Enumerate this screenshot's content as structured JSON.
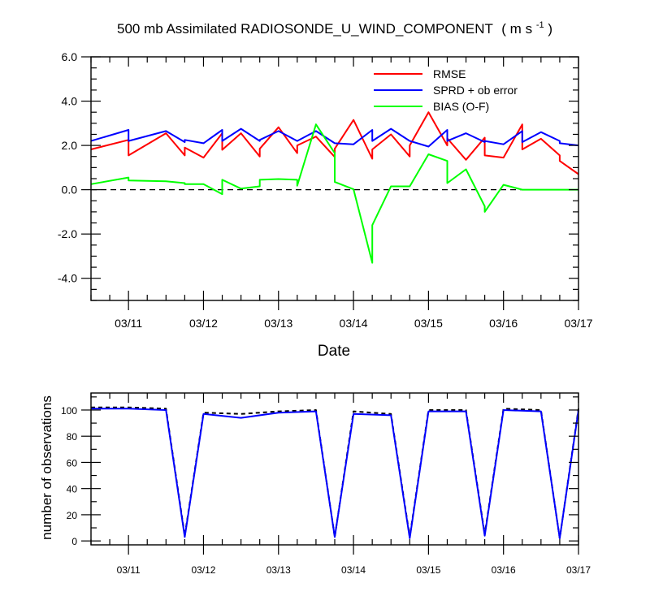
{
  "chart_data": [
    {
      "type": "line",
      "title": "500 mb Assimilated RADIOSONDE_U_WIND_COMPONENT",
      "title_units": "( m s",
      "title_units_sup": "-1",
      "title_units_close": " )",
      "xlabel": "Date",
      "ylabel": "",
      "xlim": [
        0,
        6.5
      ],
      "ylim": [
        -5.0,
        6.0
      ],
      "x_ticks": [
        0.5,
        1.5,
        2.5,
        3.5,
        4.5,
        5.5,
        6.5
      ],
      "x_tick_labels": [
        "03/11",
        "03/12",
        "03/13",
        "03/14",
        "03/15",
        "03/16",
        "03/17"
      ],
      "y_ticks": [
        -4,
        -2,
        0,
        2,
        4,
        6
      ],
      "y_tick_labels": [
        "-4.0",
        "-2.0",
        "0.0",
        "2.0",
        "4.0",
        "6.0"
      ],
      "zero_line": true,
      "grid": false,
      "legend_position": "top-right",
      "series": [
        {
          "name": "RMSE",
          "color": "#ff0000",
          "x": [
            0,
            0.5,
            0.5,
            1.0,
            1.25,
            1.25,
            1.5,
            1.75,
            1.75,
            2.0,
            2.25,
            2.25,
            2.5,
            2.75,
            2.75,
            3.0,
            3.25,
            3.25,
            3.5,
            3.75,
            3.75,
            4.0,
            4.25,
            4.25,
            4.5,
            4.75,
            4.75,
            5.0,
            5.25,
            5.25,
            5.5,
            5.75,
            5.75,
            6.0,
            6.25,
            6.25,
            6.5
          ],
          "y": [
            1.82,
            2.25,
            1.55,
            2.55,
            1.55,
            1.9,
            1.45,
            2.55,
            1.8,
            2.55,
            1.5,
            1.85,
            2.82,
            1.65,
            2.0,
            2.4,
            1.48,
            1.85,
            3.15,
            1.4,
            1.82,
            2.5,
            1.5,
            2.0,
            3.5,
            2.0,
            2.32,
            1.35,
            2.35,
            1.55,
            1.45,
            2.95,
            1.82,
            2.3,
            1.55,
            1.3,
            0.7
          ]
        },
        {
          "name": "SPRD + ob error",
          "color": "#0000ff",
          "x": [
            0,
            0.5,
            0.5,
            1.0,
            1.25,
            1.25,
            1.5,
            1.75,
            1.75,
            2.0,
            2.25,
            2.25,
            2.5,
            2.75,
            2.75,
            3.0,
            3.25,
            3.25,
            3.5,
            3.75,
            3.75,
            4.0,
            4.25,
            4.25,
            4.5,
            4.75,
            4.75,
            5.0,
            5.25,
            5.25,
            5.5,
            5.75,
            5.75,
            6.0,
            6.25,
            6.25,
            6.5
          ],
          "y": [
            2.2,
            2.7,
            2.2,
            2.65,
            2.15,
            2.25,
            2.1,
            2.7,
            2.2,
            2.75,
            2.2,
            2.25,
            2.65,
            2.2,
            2.2,
            2.65,
            2.1,
            2.1,
            2.05,
            2.7,
            2.2,
            2.75,
            2.2,
            2.2,
            1.95,
            2.7,
            2.2,
            2.55,
            2.15,
            2.2,
            2.05,
            2.65,
            2.15,
            2.6,
            2.2,
            2.1,
            2.0
          ]
        },
        {
          "name": "BIAS (O-F)",
          "color": "#00ff00",
          "x": [
            0,
            0.5,
            0.5,
            1.0,
            1.25,
            1.25,
            1.5,
            1.75,
            1.75,
            2.0,
            2.25,
            2.25,
            2.5,
            2.75,
            2.75,
            3.0,
            3.25,
            3.25,
            3.5,
            3.75,
            3.75,
            4.0,
            4.25,
            4.25,
            4.5,
            4.75,
            4.75,
            5.0,
            5.25,
            5.25,
            5.5,
            5.75,
            5.75,
            6.0,
            6.25,
            6.25,
            6.5
          ],
          "y": [
            0.25,
            0.55,
            0.42,
            0.38,
            0.3,
            0.25,
            0.25,
            -0.2,
            0.45,
            0.05,
            0.15,
            0.45,
            0.48,
            0.45,
            0.18,
            2.95,
            1.65,
            0.35,
            0.02,
            -3.3,
            -1.6,
            0.15,
            0.15,
            0.15,
            1.6,
            1.3,
            0.3,
            0.92,
            -0.75,
            -1.0,
            0.22,
            0,
            0,
            0,
            0,
            0,
            0
          ]
        }
      ]
    },
    {
      "type": "line",
      "title": "",
      "xlabel": "",
      "ylabel": "number of observations",
      "xlim": [
        0,
        6.5
      ],
      "ylim": [
        -3,
        113
      ],
      "x_ticks": [
        0.5,
        1.5,
        2.5,
        3.5,
        4.5,
        5.5,
        6.5
      ],
      "x_tick_labels": [
        "03/11",
        "03/12",
        "03/13",
        "03/14",
        "03/15",
        "03/16",
        "03/17"
      ],
      "y_ticks": [
        0,
        20,
        40,
        60,
        80,
        100
      ],
      "y_tick_labels": [
        "0",
        "20",
        "40",
        "60",
        "80",
        "100"
      ],
      "grid": false,
      "series": [
        {
          "name": "",
          "color": "#000000",
          "dash": "5,4",
          "x": [
            0,
            0.5,
            1.0,
            1.25,
            1.5,
            2.0,
            2.5,
            3.0,
            3.25,
            3.5,
            4.0,
            4.25,
            4.5,
            5.0,
            5.25,
            5.5,
            6.0,
            6.25,
            6.5
          ],
          "y": [
            102,
            102,
            101,
            4,
            98,
            97,
            99,
            100,
            3,
            99,
            97,
            3,
            100,
            100,
            5,
            101,
            100,
            2,
            101
          ]
        },
        {
          "name": "",
          "color": "#0000ff",
          "x": [
            0,
            0.5,
            1.0,
            1.25,
            1.5,
            2.0,
            2.5,
            3.0,
            3.25,
            3.5,
            4.0,
            4.25,
            4.5,
            5.0,
            5.25,
            5.5,
            6.0,
            6.25,
            6.5
          ],
          "y": [
            101,
            101,
            100,
            3,
            97,
            94,
            98,
            99,
            3,
            97,
            96,
            2,
            99,
            99,
            4,
            100,
            99,
            2,
            100
          ]
        }
      ]
    }
  ]
}
